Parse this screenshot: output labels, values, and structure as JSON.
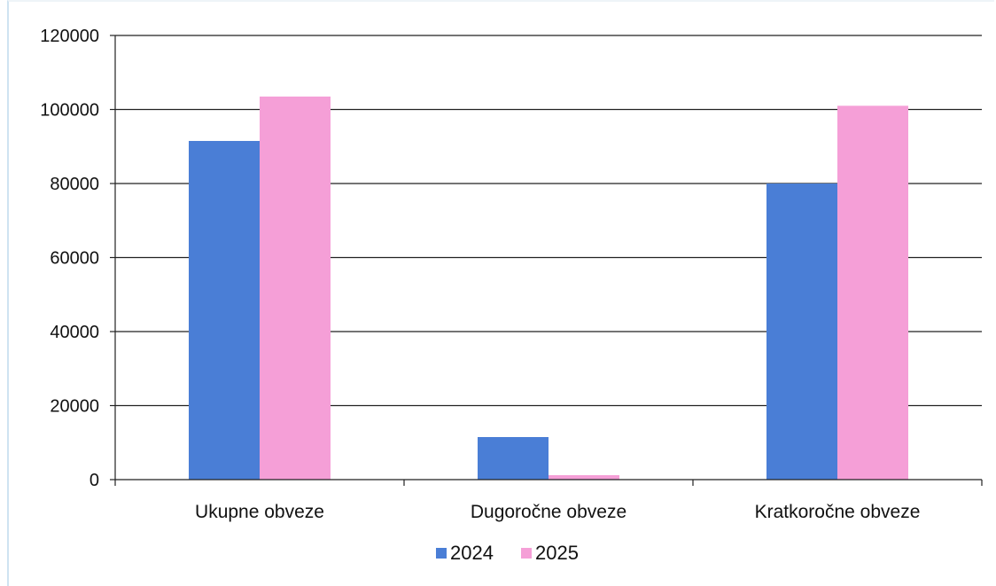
{
  "chart_data": {
    "type": "bar",
    "categories": [
      "Ukupne obveze",
      "Dugoročne obveze",
      "Kratkoročne obveze"
    ],
    "series": [
      {
        "name": "2024",
        "values": [
          91500,
          11500,
          80000
        ],
        "color": "#4a7ed6"
      },
      {
        "name": "2025",
        "values": [
          103500,
          1200,
          101000
        ],
        "color": "#f59fd7"
      }
    ],
    "yticks": [
      0,
      20000,
      40000,
      60000,
      80000,
      100000,
      120000
    ],
    "ylim": [
      0,
      120000
    ],
    "grid": true,
    "legend": "bottom"
  }
}
